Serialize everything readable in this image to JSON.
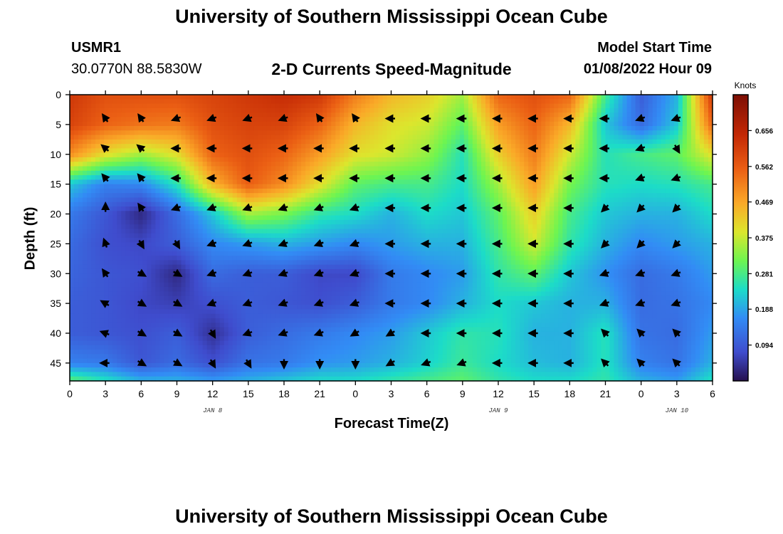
{
  "page_title": "University of Southern Mississippi Ocean Cube",
  "footer_title": "University of Southern Mississippi Ocean Cube",
  "station": {
    "id": "USMR1",
    "coords": "30.0770N  88.5830W"
  },
  "subtitle": "2-D Currents Speed-Magnitude",
  "model": {
    "label": "Model Start Time",
    "value": "01/08/2022 Hour 09"
  },
  "chart_data": {
    "type": "heatmap",
    "title": "2-D Currents Speed-Magnitude",
    "xlabel": "Forecast Time(Z)",
    "ylabel": "Depth (ft)",
    "x_tick_labels": [
      "0",
      "3",
      "6",
      "9",
      "12",
      "15",
      "18",
      "21",
      "0",
      "3",
      "6",
      "9",
      "12",
      "15",
      "18",
      "21",
      "0",
      "3",
      "6"
    ],
    "day_labels": [
      {
        "text": "JAN 8",
        "at_tick": 4
      },
      {
        "text": "JAN 9",
        "at_tick": 12
      },
      {
        "text": "JAN 10",
        "at_tick": 17
      }
    ],
    "y_ticks": [
      0,
      5,
      10,
      15,
      20,
      25,
      30,
      35,
      40,
      45
    ],
    "ylim": [
      0,
      48
    ],
    "xlim": [
      0,
      18
    ],
    "colorbar": {
      "label": "Knots",
      "ticks": [
        "0.656",
        "0.562",
        "0.469",
        "0.375",
        "0.281",
        "0.188",
        "0.094"
      ],
      "tick_values": [
        0.656,
        0.562,
        0.469,
        0.375,
        0.281,
        0.188,
        0.094
      ],
      "range": [
        0,
        0.75
      ]
    },
    "arrow_x_ticks": [
      1,
      2,
      3,
      4,
      5,
      6,
      7,
      8,
      9,
      10,
      11,
      12,
      13,
      14,
      15,
      16,
      17
    ],
    "arrow_depths": [
      4,
      9,
      14,
      19,
      25,
      30,
      35,
      40,
      45
    ],
    "speed_field": {
      "depths": [
        0,
        5,
        10,
        15,
        20,
        25,
        30,
        35,
        40,
        45,
        48
      ],
      "times": [
        0,
        1,
        2,
        3,
        4,
        5,
        6,
        7,
        8,
        9,
        10,
        11,
        12,
        13,
        14,
        15,
        16,
        17,
        18
      ],
      "rows": [
        [
          0.62,
          0.58,
          0.58,
          0.58,
          0.6,
          0.62,
          0.64,
          0.62,
          0.52,
          0.45,
          0.42,
          0.35,
          0.55,
          0.58,
          0.55,
          0.28,
          0.1,
          0.2,
          0.62
        ],
        [
          0.6,
          0.55,
          0.53,
          0.52,
          0.58,
          0.6,
          0.6,
          0.55,
          0.45,
          0.4,
          0.38,
          0.3,
          0.48,
          0.55,
          0.45,
          0.22,
          0.12,
          0.22,
          0.55
        ],
        [
          0.5,
          0.4,
          0.35,
          0.4,
          0.55,
          0.58,
          0.55,
          0.48,
          0.4,
          0.38,
          0.34,
          0.25,
          0.42,
          0.52,
          0.38,
          0.25,
          0.28,
          0.3,
          0.4
        ],
        [
          0.22,
          0.15,
          0.16,
          0.25,
          0.45,
          0.56,
          0.5,
          0.4,
          0.3,
          0.28,
          0.28,
          0.24,
          0.35,
          0.48,
          0.32,
          0.25,
          0.24,
          0.25,
          0.28
        ],
        [
          0.14,
          0.09,
          0.03,
          0.12,
          0.22,
          0.35,
          0.32,
          0.26,
          0.24,
          0.2,
          0.24,
          0.22,
          0.3,
          0.42,
          0.28,
          0.22,
          0.2,
          0.2,
          0.24
        ],
        [
          0.12,
          0.08,
          0.07,
          0.1,
          0.16,
          0.18,
          0.2,
          0.18,
          0.16,
          0.18,
          0.2,
          0.2,
          0.28,
          0.38,
          0.26,
          0.2,
          0.16,
          0.18,
          0.2
        ],
        [
          0.11,
          0.09,
          0.08,
          0.03,
          0.12,
          0.1,
          0.1,
          0.07,
          0.07,
          0.14,
          0.16,
          0.18,
          0.26,
          0.3,
          0.22,
          0.17,
          0.12,
          0.14,
          0.18
        ],
        [
          0.1,
          0.09,
          0.07,
          0.06,
          0.08,
          0.1,
          0.09,
          0.08,
          0.1,
          0.14,
          0.16,
          0.2,
          0.24,
          0.22,
          0.2,
          0.2,
          0.12,
          0.13,
          0.16
        ],
        [
          0.1,
          0.09,
          0.08,
          0.1,
          0.04,
          0.1,
          0.12,
          0.14,
          0.16,
          0.18,
          0.22,
          0.26,
          0.25,
          0.2,
          0.2,
          0.25,
          0.13,
          0.12,
          0.18
        ],
        [
          0.15,
          0.14,
          0.09,
          0.12,
          0.08,
          0.13,
          0.14,
          0.17,
          0.18,
          0.2,
          0.23,
          0.27,
          0.24,
          0.21,
          0.2,
          0.25,
          0.15,
          0.13,
          0.2
        ],
        [
          0.3,
          0.25,
          0.2,
          0.2,
          0.18,
          0.2,
          0.22,
          0.24,
          0.24,
          0.26,
          0.28,
          0.3,
          0.26,
          0.24,
          0.24,
          0.26,
          0.2,
          0.18,
          0.25
        ]
      ]
    }
  }
}
